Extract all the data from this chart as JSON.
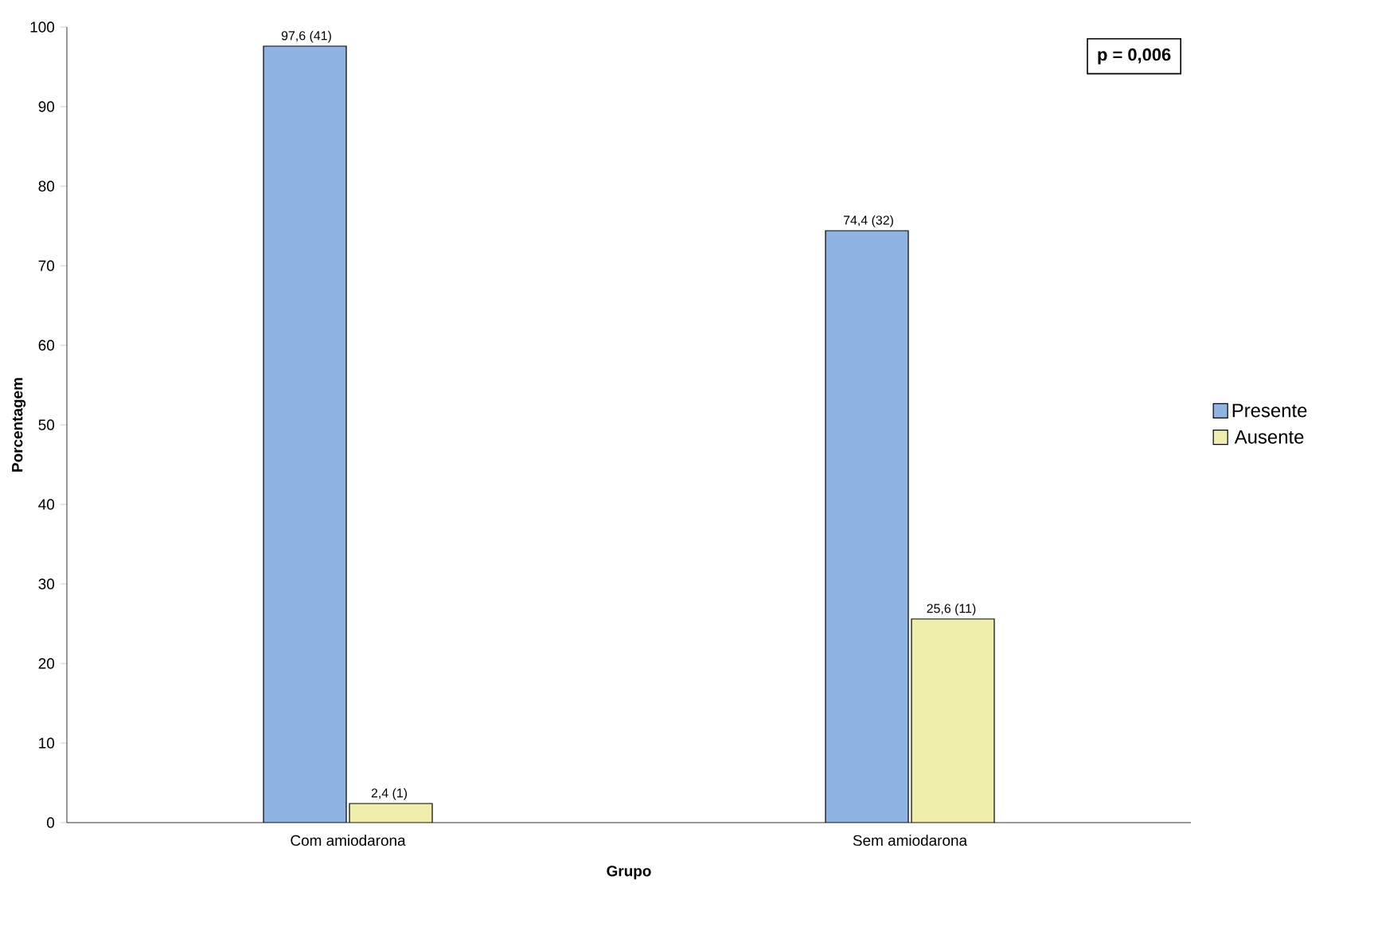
{
  "chart_data": {
    "type": "bar",
    "xlabel": "Grupo",
    "ylabel": "Porcentagem",
    "categories": [
      "Com amiodarona",
      "Sem amiodarona"
    ],
    "series": [
      {
        "name": "Presente",
        "color": "#8db4e2",
        "values": [
          97.6,
          74.4
        ],
        "value_labels": [
          "97,6 (41)",
          "74,4 (32)"
        ]
      },
      {
        "name": "Ausente",
        "color": "#eeeeaa",
        "values": [
          2.4,
          25.6
        ],
        "value_labels": [
          "2,4 (1)",
          "25,6 (11)"
        ]
      }
    ],
    "ylim": [
      0,
      100
    ],
    "yticks": [
      0,
      10,
      20,
      30,
      40,
      50,
      60,
      70,
      80,
      90,
      100
    ],
    "grid": false,
    "legend": "right",
    "annotations": [
      "p = 0,006"
    ]
  }
}
